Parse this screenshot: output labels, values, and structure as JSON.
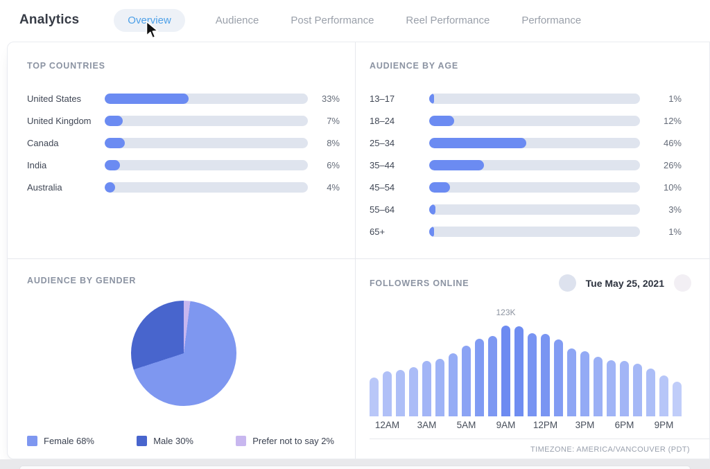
{
  "header": {
    "title": "Analytics",
    "tabs": [
      {
        "label": "Overview",
        "active": true
      },
      {
        "label": "Audience",
        "active": false
      },
      {
        "label": "Post Performance",
        "active": false
      },
      {
        "label": "Reel Performance",
        "active": false
      },
      {
        "label": "Performance",
        "active": false
      }
    ]
  },
  "panels": {
    "top_countries": {
      "title": "TOP COUNTRIES"
    },
    "audience_by_age": {
      "title": "AUDIENCE BY AGE"
    },
    "audience_by_gender": {
      "title": "AUDIENCE BY GENDER"
    },
    "followers_online": {
      "title": "FOLLOWERS ONLINE",
      "date": "Tue May 25, 2021",
      "peak_label": "123K",
      "timezone": "TIMEZONE: AMERICA/VANCOUVER (PDT)"
    }
  },
  "colors": {
    "active_tab_text": "#4da0e8",
    "active_tab_pill": "#edf1f7",
    "bar_fill": "#6b8bf2",
    "bar_track": "#dfe4ee",
    "online_bar_rgb": "79,116,238"
  },
  "chart_data": [
    {
      "type": "bar",
      "panel": "top_countries",
      "title": "TOP COUNTRIES",
      "orientation": "horizontal",
      "categories": [
        "United States",
        "United Kingdom",
        "Canada",
        "India",
        "Australia"
      ],
      "values": [
        33,
        7,
        8,
        6,
        4
      ],
      "value_labels": [
        "33%",
        "7%",
        "8%",
        "6%",
        "4%"
      ],
      "unit": "%",
      "track_max": 80,
      "bar_color": "#6b8bf2",
      "track_color": "#dfe4ee"
    },
    {
      "type": "bar",
      "panel": "audience_by_age",
      "title": "AUDIENCE BY AGE",
      "orientation": "horizontal",
      "categories": [
        "13–17",
        "18–24",
        "25–34",
        "35–44",
        "45–54",
        "55–64",
        "65+"
      ],
      "values": [
        1,
        12,
        46,
        26,
        10,
        3,
        1
      ],
      "value_labels": [
        "1%",
        "12%",
        "46%",
        "26%",
        "10%",
        "3%",
        "1%"
      ],
      "unit": "%",
      "track_max": 100,
      "bar_color": "#6b8bf2",
      "track_color": "#dfe4ee"
    },
    {
      "type": "pie",
      "panel": "audience_by_gender",
      "title": "AUDIENCE BY GENDER",
      "slices": [
        {
          "name": "Female",
          "value": 68,
          "label": "Female 68%",
          "color": "#7e97f0"
        },
        {
          "name": "Male",
          "value": 30,
          "label": "Male 30%",
          "color": "#4865cd"
        },
        {
          "name": "Prefer not to say",
          "value": 2,
          "label": "Prefer not to say 2%",
          "color": "#c8b7ef"
        }
      ],
      "draw_order_clockwise_from_top": [
        "Prefer not to say",
        "Female",
        "Male"
      ]
    },
    {
      "type": "bar",
      "panel": "followers_online",
      "title": "FOLLOWERS ONLINE",
      "x_unit": "hour of day",
      "x_tick_labels": [
        "12AM",
        "3AM",
        "5AM",
        "9AM",
        "12PM",
        "3PM",
        "6PM",
        "9PM"
      ],
      "values_estimated_K": [
        53,
        61,
        63,
        67,
        75,
        78,
        85,
        96,
        105,
        109,
        123,
        122,
        113,
        112,
        104,
        92,
        88,
        81,
        76,
        75,
        71,
        65,
        55,
        47
      ],
      "peak_index": 10,
      "peak_label": "123K",
      "date": "Tue May 25, 2021",
      "timezone": "TIMEZONE: AMERICA/VANCOUVER (PDT)"
    }
  ]
}
